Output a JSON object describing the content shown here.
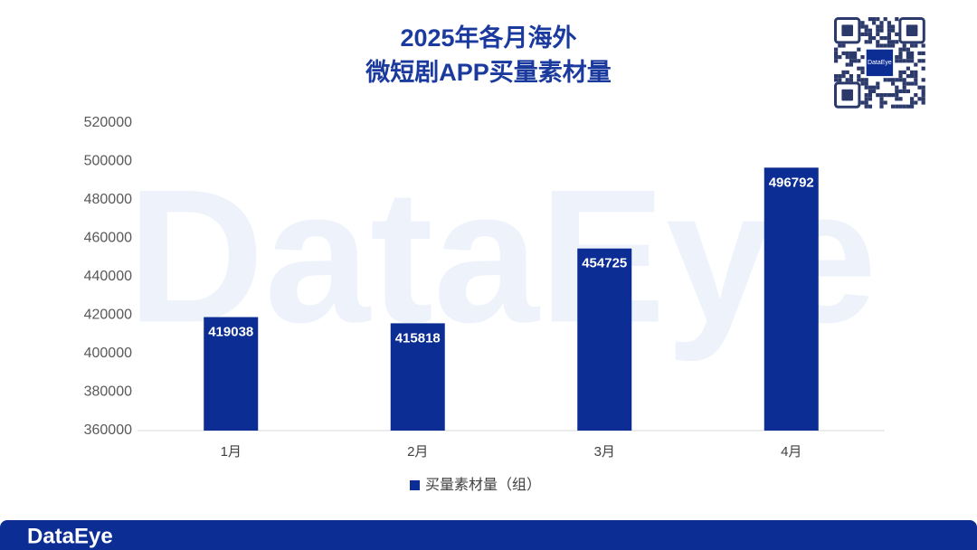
{
  "chart_data": {
    "type": "bar",
    "title": [
      "2025年各月海外",
      "微短剧APP买量素材量"
    ],
    "categories": [
      "1月",
      "2月",
      "3月",
      "4月"
    ],
    "series": [
      {
        "name": "买量素材量（组）",
        "color": "#0b2d94",
        "values": [
          419038,
          415818,
          454725,
          496792
        ]
      }
    ],
    "ylim": [
      360000,
      520000
    ],
    "yticks": [
      360000,
      380000,
      400000,
      420000,
      440000,
      460000,
      480000,
      500000,
      520000
    ],
    "grid": false,
    "legend": "bottom",
    "watermark": "DataEye",
    "brand": "DataEye",
    "qr_label": "DataEye"
  }
}
